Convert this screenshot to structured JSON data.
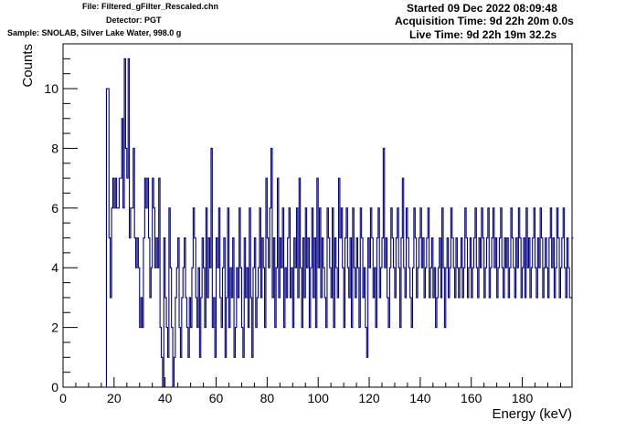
{
  "header": {
    "file": "File: Filtered_gFilter_Rescaled.chn",
    "detector": "Detector: PGT",
    "sample": "Sample: SNOLAB, Silver Lake Water, 998.0 g",
    "started": "Started 09 Dec 2022 08:09:48",
    "acquisition": "Acquisition Time: 9d 22h 20m 0.0s",
    "live": "Live Time: 9d 22h 19m 32.2s"
  },
  "colors": {
    "histogram": "#000080",
    "axis": "#000000",
    "background": "#ffffff"
  },
  "chart_data": {
    "type": "histogram",
    "title": "",
    "xlabel": "Energy (keV)",
    "ylabel": "Counts",
    "xlim": [
      0,
      199.5
    ],
    "ylim": [
      0,
      11.5
    ],
    "bin_width": 0.5,
    "x_start": 0,
    "xticks": [
      0,
      20,
      40,
      60,
      80,
      100,
      120,
      140,
      160,
      180
    ],
    "yticks": [
      0,
      2,
      4,
      6,
      8,
      10
    ],
    "grid": false,
    "legend": "none",
    "values": [
      0,
      0,
      0,
      0,
      0,
      0,
      0,
      0,
      0,
      0,
      0,
      0,
      0,
      0,
      0,
      0,
      0,
      0,
      0,
      0,
      0,
      0,
      0,
      0,
      0,
      0,
      0,
      0,
      0,
      0,
      0,
      0,
      0,
      0,
      10,
      10,
      5,
      3,
      6,
      7,
      6,
      7,
      6,
      6,
      7,
      7,
      9,
      6,
      11,
      8,
      7,
      11,
      5,
      6,
      6,
      8,
      5,
      4,
      5,
      4,
      2,
      3,
      2,
      5,
      7,
      6,
      7,
      5,
      3,
      4,
      7,
      6,
      4,
      5,
      4,
      7,
      2,
      1,
      0,
      5,
      3,
      2,
      1,
      6,
      4,
      2,
      0,
      1,
      3,
      4,
      5,
      2,
      1,
      3,
      4,
      5,
      3,
      2,
      1,
      3,
      2,
      4,
      6,
      5,
      3,
      2,
      4,
      1,
      3,
      5,
      4,
      2,
      6,
      3,
      5,
      4,
      8,
      2,
      3,
      1,
      5,
      4,
      6,
      3,
      2,
      4,
      5,
      1,
      3,
      6,
      2,
      4,
      3,
      5,
      1,
      2,
      4,
      3,
      6,
      4,
      2,
      1,
      5,
      3,
      4,
      2,
      6,
      3,
      1,
      4,
      5,
      2,
      3,
      4,
      6,
      3,
      5,
      4,
      2,
      7,
      5,
      4,
      6,
      8,
      3,
      5,
      2,
      4,
      7,
      3,
      5,
      4,
      6,
      2,
      4,
      3,
      5,
      6,
      3,
      4,
      2,
      5,
      4,
      6,
      3,
      7,
      4,
      2,
      5,
      3,
      6,
      4,
      5,
      2,
      4,
      6,
      3,
      5,
      2,
      7,
      4,
      6,
      3,
      5,
      4,
      3,
      2,
      6,
      5,
      4,
      3,
      6,
      2,
      5,
      4,
      3,
      7,
      5,
      6,
      4,
      2,
      5,
      6,
      4,
      3,
      5,
      2,
      6,
      4,
      3,
      5,
      4,
      2,
      6,
      5,
      3,
      4,
      2,
      1,
      5,
      4,
      6,
      5,
      3,
      4,
      2,
      5,
      6,
      3,
      4,
      5,
      8,
      4,
      5,
      3,
      2,
      4,
      6,
      5,
      4,
      3,
      5,
      6,
      4,
      2,
      5,
      7,
      4,
      3,
      6,
      5,
      4,
      3,
      2,
      4,
      6,
      5,
      3,
      4,
      5,
      6,
      4,
      5,
      3,
      4,
      5,
      6,
      3,
      4,
      5,
      3,
      4,
      2,
      3,
      4,
      5,
      3,
      6,
      4,
      2,
      4,
      5,
      3,
      4,
      6,
      5,
      4,
      3,
      5,
      4,
      3,
      4,
      5,
      3,
      4,
      6,
      5,
      3,
      4,
      5,
      3,
      4,
      5,
      6,
      4,
      3,
      5,
      4,
      6,
      5,
      3,
      4,
      5,
      6,
      3,
      4,
      5,
      6,
      4,
      5,
      3,
      4,
      5,
      6,
      4,
      3,
      5,
      4,
      5,
      3,
      4,
      6,
      5,
      4,
      3,
      5,
      4,
      6,
      5,
      3,
      4,
      5,
      3,
      6,
      4,
      5,
      3,
      4,
      5,
      6,
      4,
      3,
      5,
      4,
      6,
      5,
      3,
      4,
      5,
      4,
      3,
      5,
      6,
      4,
      5,
      3,
      4,
      6,
      5,
      3,
      4,
      5,
      6,
      4,
      3,
      5,
      4,
      3,
      3,
      5
    ]
  }
}
